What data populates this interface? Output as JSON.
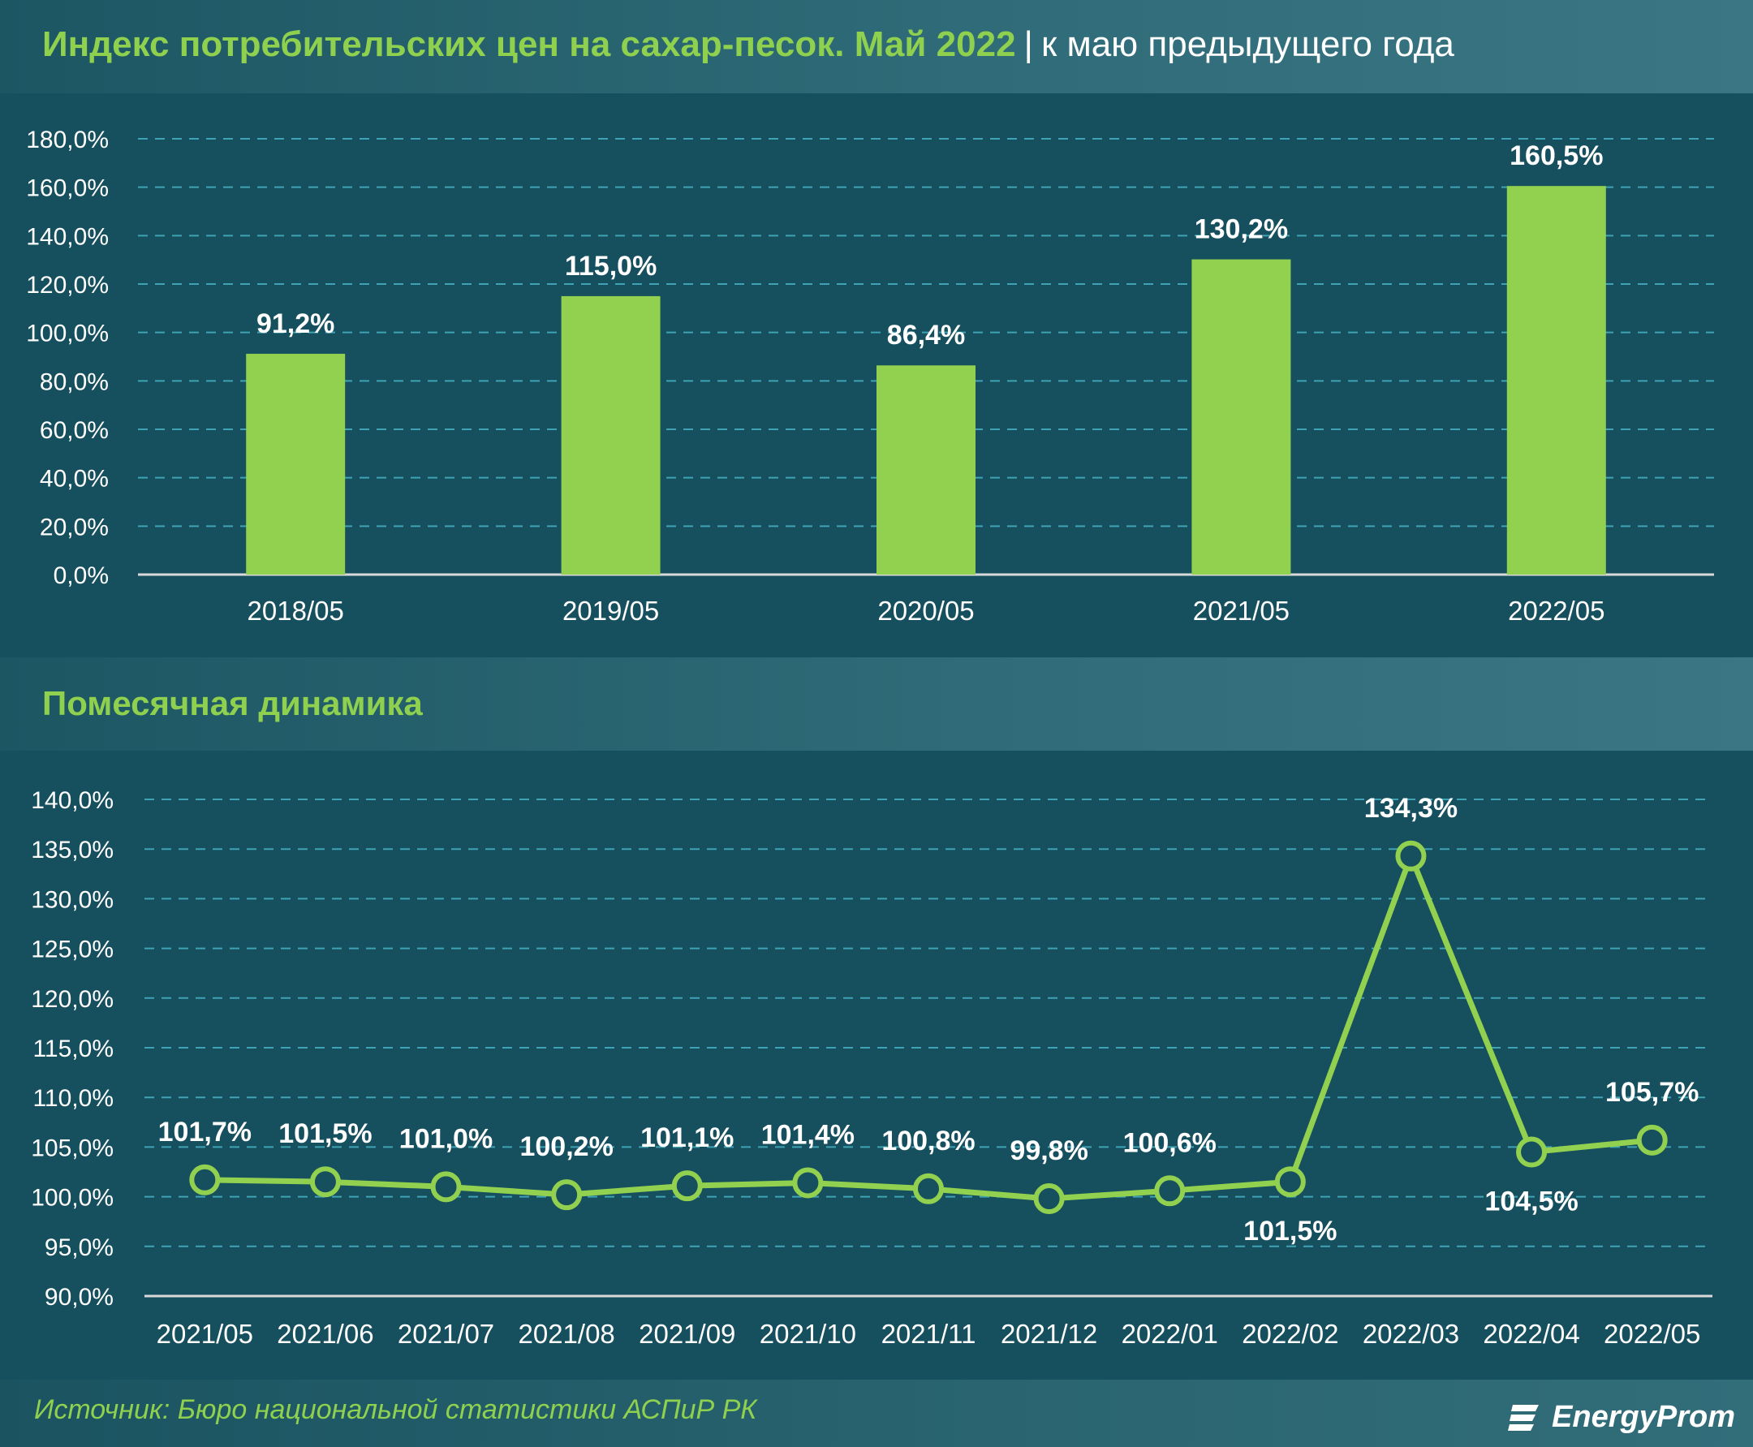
{
  "header": {
    "title_main": "Индекс потребительских цен на сахар-песок. Май 2022",
    "title_separator": "|",
    "title_rest": "к маю предыдущего года"
  },
  "section2": {
    "title": "Помесячная динамика"
  },
  "footer": {
    "source": "Источник: Бюро национальной статистики АСПиР РК",
    "logo_text": "EnergyProm"
  },
  "colors": {
    "background": "#164f5e",
    "accent_green": "#8fd14f",
    "bar_fill": "#92d050",
    "text": "#ffffff",
    "gridline": "#3fa3b5"
  },
  "chart_data": [
    {
      "type": "bar",
      "categories": [
        "2018/05",
        "2019/05",
        "2020/05",
        "2021/05",
        "2022/05"
      ],
      "values": [
        91.2,
        115.0,
        86.4,
        130.2,
        160.5
      ],
      "value_labels": [
        "91,2%",
        "115,0%",
        "86,4%",
        "130,2%",
        "160,5%"
      ],
      "ylim": [
        0,
        180
      ],
      "yticks": [
        "0,0%",
        "20,0%",
        "40,0%",
        "60,0%",
        "80,0%",
        "100,0%",
        "120,0%",
        "140,0%",
        "160,0%",
        "180,0%"
      ],
      "grid": true,
      "legend": "none"
    },
    {
      "type": "line",
      "categories": [
        "2021/05",
        "2021/06",
        "2021/07",
        "2021/08",
        "2021/09",
        "2021/10",
        "2021/11",
        "2021/12",
        "2022/01",
        "2022/02",
        "2022/03",
        "2022/04",
        "2022/05"
      ],
      "values": [
        101.7,
        101.5,
        101.0,
        100.2,
        101.1,
        101.4,
        100.8,
        99.8,
        100.6,
        101.5,
        134.3,
        104.5,
        105.7
      ],
      "value_labels": [
        "101,7%",
        "101,5%",
        "101,0%",
        "100,2%",
        "101,1%",
        "101,4%",
        "100,8%",
        "99,8%",
        "100,6%",
        "101,5%",
        "134,3%",
        "104,5%",
        "105,7%"
      ],
      "label_positions": [
        "above",
        "above",
        "above",
        "above",
        "above",
        "above",
        "above",
        "above",
        "above",
        "below",
        "above",
        "below",
        "above"
      ],
      "ylim": [
        90,
        140
      ],
      "yticks": [
        "90,0%",
        "95,0%",
        "100,0%",
        "105,0%",
        "110,0%",
        "115,0%",
        "120,0%",
        "125,0%",
        "130,0%",
        "135,0%",
        "140,0%"
      ],
      "grid": true,
      "legend": "none"
    }
  ]
}
